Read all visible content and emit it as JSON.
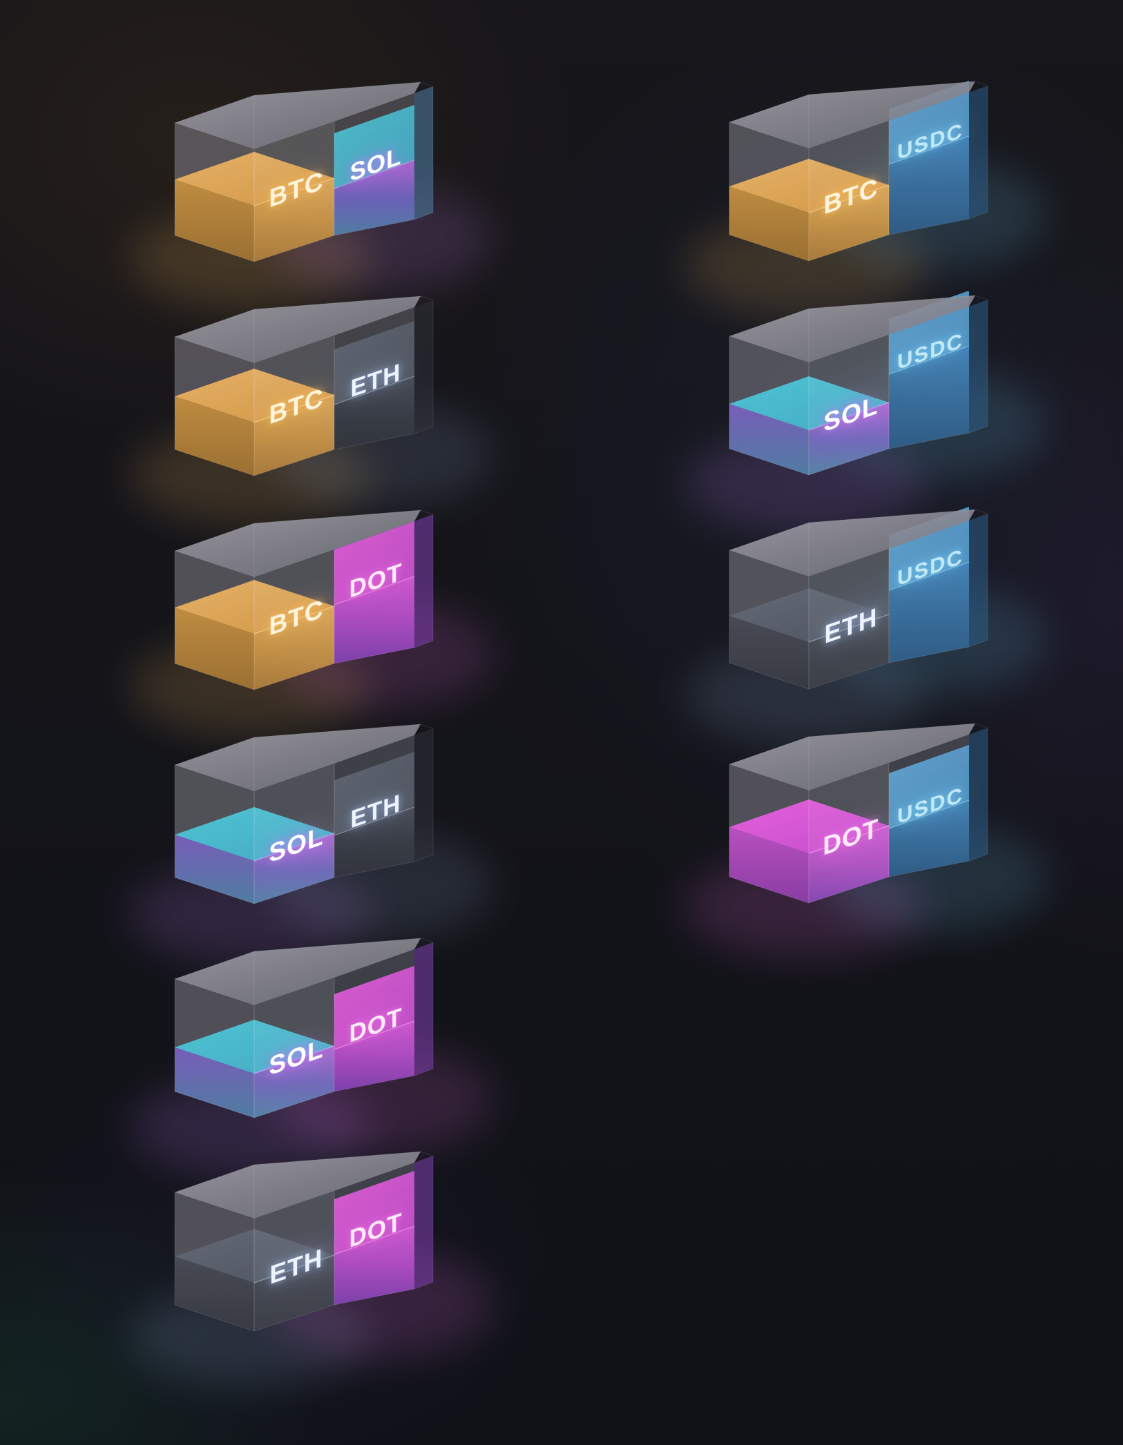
{
  "scene": {
    "background": "#141419",
    "description_visible_text_only": true
  },
  "assets": {
    "BTC": {
      "label": "BTC",
      "label_color": "#FFF4DC",
      "glow": "#F5B95A",
      "surface": [
        "#EDB669",
        "#D89A44"
      ],
      "front": [
        "#E2A855",
        "#C8903D",
        "#A9752F"
      ],
      "side": [
        "#C8913F",
        "#9F712E"
      ],
      "edge": "#F7CE8C"
    },
    "SOL": {
      "label": "SOL",
      "label_color": "#FFFFFF",
      "glow": "#BD7CF2",
      "surface": [
        "#4EC9D9",
        "#44AFCB"
      ],
      "front": [
        "#B468D8",
        "#6E62BE",
        "#4E7FA6"
      ],
      "side": [
        "#7C5EC2",
        "#4E7FA6"
      ],
      "edge": "#CFA6F5"
    },
    "ETH": {
      "label": "ETH",
      "label_color": "#EDF3FF",
      "glow": "#8FA6CC",
      "surface": [
        "#646B78",
        "#4E545F"
      ],
      "front": [
        "#4A4E59",
        "#383C45",
        "#2F323B"
      ],
      "side": [
        "#474A54",
        "#34373F"
      ],
      "edge": "#9AA4B6"
    },
    "DOT": {
      "label": "DOT",
      "label_color": "#FFEAFB",
      "glow": "#E86CE0",
      "surface": [
        "#ED60E2",
        "#C94ED2"
      ],
      "front": [
        "#D65AD8",
        "#B24CC6",
        "#7F3FB0"
      ],
      "side": [
        "#C250C8",
        "#8C3BA8"
      ],
      "edge": "#F7A2EE"
    },
    "USDC": {
      "label": "USDC",
      "label_color": "#C2E9FA",
      "glow": "#6FC8F0",
      "surface": [
        "#66AEDD",
        "#4E94C8"
      ],
      "front": [
        "#4586BE",
        "#38709F",
        "#2D5C88"
      ],
      "side": [
        "#3C74A6",
        "#2A5480"
      ],
      "edge": "#8FD0EE"
    }
  },
  "glass": {
    "top": [
      "#A4A2AA",
      "#6E6F7A"
    ],
    "front": "#9295A0",
    "side": "#8E8C96",
    "edge_line": "#FFFFFF"
  },
  "pairs": [
    {
      "base": "BTC",
      "quote": "SOL",
      "column": "left",
      "row": 0,
      "base_fill": 0.5,
      "quote_fill": 0.42
    },
    {
      "base": "BTC",
      "quote": "ETH",
      "column": "left",
      "row": 1,
      "base_fill": 0.47,
      "quote_fill": 0.4
    },
    {
      "base": "BTC",
      "quote": "DOT",
      "column": "left",
      "row": 2,
      "base_fill": 0.5,
      "quote_fill": 0.52
    },
    {
      "base": "SOL",
      "quote": "ETH",
      "column": "left",
      "row": 3,
      "base_fill": 0.38,
      "quote_fill": 0.38
    },
    {
      "base": "SOL",
      "quote": "DOT",
      "column": "left",
      "row": 4,
      "base_fill": 0.39,
      "quote_fill": 0.38
    },
    {
      "base": "ETH",
      "quote": "DOT",
      "column": "left",
      "row": 5,
      "base_fill": 0.43,
      "quote_fill": 0.45
    },
    {
      "base": "BTC",
      "quote": "USDC",
      "column": "right",
      "row": 0,
      "base_fill": 0.43,
      "quote_fill": 0.62
    },
    {
      "base": "SOL",
      "quote": "USDC",
      "column": "right",
      "row": 1,
      "base_fill": 0.4,
      "quote_fill": 0.66
    },
    {
      "base": "ETH",
      "quote": "USDC",
      "column": "right",
      "row": 2,
      "base_fill": 0.42,
      "quote_fill": 0.64
    },
    {
      "base": "DOT",
      "quote": "USDC",
      "column": "right",
      "row": 3,
      "base_fill": 0.44,
      "quote_fill": 0.43
    }
  ]
}
